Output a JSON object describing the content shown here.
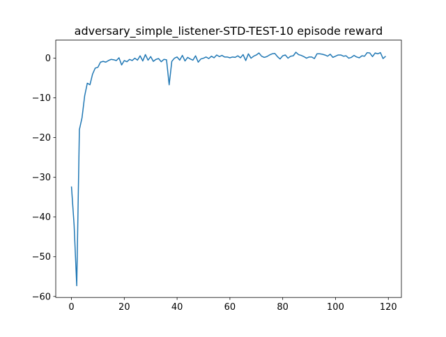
{
  "chart_data": {
    "type": "line",
    "title": "adversary_simple_listener-STD-TEST-10 episode reward",
    "x": [
      0,
      1,
      2,
      3,
      4,
      5,
      6,
      7,
      8,
      9,
      10,
      11,
      12,
      13,
      14,
      15,
      16,
      17,
      18,
      19,
      20,
      21,
      22,
      23,
      24,
      25,
      26,
      27,
      28,
      29,
      30,
      31,
      32,
      33,
      34,
      35,
      36,
      37,
      38,
      39,
      40,
      41,
      42,
      43,
      44,
      45,
      46,
      47,
      48,
      49,
      50,
      51,
      52,
      53,
      54,
      55,
      56,
      57,
      58,
      59,
      60,
      61,
      62,
      63,
      64,
      65,
      66,
      67,
      68,
      69,
      70,
      71,
      72,
      73,
      74,
      75,
      76,
      77,
      78,
      79,
      80,
      81,
      82,
      83,
      84,
      85,
      86,
      87,
      88,
      89,
      90,
      91,
      92,
      93,
      94,
      95,
      96,
      97,
      98,
      99,
      100,
      101,
      102,
      103,
      104,
      105,
      106,
      107,
      108,
      109,
      110,
      111,
      112,
      113,
      114,
      115,
      116,
      117,
      118,
      119
    ],
    "series": [
      {
        "color": "#1f77b4",
        "values": [
          -32.3,
          -42,
          -57.3,
          -18,
          -15,
          -9.5,
          -6.3,
          -6.7,
          -4,
          -2.5,
          -2.3,
          -1,
          -0.8,
          -1,
          -0.6,
          -0.3,
          -0.4,
          -0.6,
          0.1,
          -1.7,
          -0.6,
          -0.9,
          -0.3,
          -0.6,
          0,
          -0.5,
          0.6,
          -0.7,
          0.9,
          -0.5,
          0.4,
          -0.8,
          -0.3,
          -0.1,
          -0.9,
          -0.3,
          -0.4,
          -6.7,
          -0.8,
          0,
          0.3,
          -0.5,
          0.7,
          -0.7,
          0.2,
          -0.2,
          -0.5,
          0.6,
          -1,
          -0.2,
          0,
          0.3,
          -0.1,
          0.5,
          0.1,
          0.8,
          0.4,
          0.7,
          0.3,
          0.3,
          0.1,
          0.3,
          0.2,
          0.6,
          0.1,
          0.9,
          -0.6,
          1.1,
          0,
          0.5,
          0.8,
          1.3,
          0.5,
          0.2,
          0.4,
          0.8,
          1.1,
          1.2,
          0.4,
          -0.2,
          0.6,
          0.8,
          0,
          0.5,
          0.6,
          1.5,
          0.9,
          0.7,
          0.4,
          0,
          0.3,
          0.3,
          -0.1,
          1.1,
          1.1,
          1,
          0.8,
          0.5,
          1,
          0.2,
          0.5,
          0.8,
          0.8,
          0.5,
          0.6,
          0,
          0.2,
          0.7,
          0.3,
          0.1,
          0.6,
          0.5,
          1.4,
          1.3,
          0.4,
          1.3,
          1.1,
          1.4,
          -0.1,
          0.5
        ]
      }
    ],
    "xlim": [
      -5.95,
      124.95
    ],
    "ylim": [
      -60.25,
      4.55
    ],
    "xticks": [
      0,
      20,
      40,
      60,
      80,
      100,
      120
    ],
    "yticks": [
      {
        "value": -60,
        "label": "−60"
      },
      {
        "value": -50,
        "label": "−50"
      },
      {
        "value": -40,
        "label": "−40"
      },
      {
        "value": -30,
        "label": "−30"
      },
      {
        "value": -20,
        "label": "−20"
      },
      {
        "value": -10,
        "label": "−10"
      },
      0
    ]
  }
}
